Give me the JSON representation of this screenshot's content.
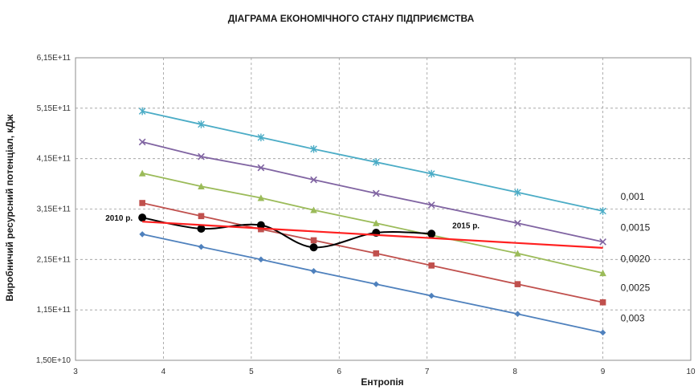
{
  "chart_data": {
    "type": "line",
    "title": "ДІАГРАМА ЕКОНОМІЧНОГО СТАНУ ПІДПРИЄМСТВА",
    "xlabel": "Ентропія",
    "ylabel": "Виробничий ресурсний потенціал, кДж",
    "xlim": [
      3,
      10
    ],
    "ylim": [
      15000000000,
      615000000000
    ],
    "x_ticks": [
      "3",
      "4",
      "5",
      "6",
      "7",
      "8",
      "9",
      "10"
    ],
    "y_ticks": [
      "1,50E+10",
      "1,15E+11",
      "2,15E+11",
      "3,15E+11",
      "4,15E+11",
      "5,15E+11",
      "6,15E+11"
    ],
    "grid": true,
    "series": [
      {
        "name": "0,001",
        "color": "#4bacc6",
        "marker": "star",
        "points": [
          [
            3.76,
            509000000000
          ],
          [
            4.43,
            483000000000
          ],
          [
            5.11,
            457000000000
          ],
          [
            5.71,
            434000000000
          ],
          [
            6.42,
            408000000000
          ],
          [
            7.05,
            385000000000
          ],
          [
            8.03,
            348000000000
          ],
          [
            9.0,
            311000000000
          ]
        ]
      },
      {
        "name": "0,0015",
        "color": "#8064a2",
        "marker": "x",
        "points": [
          [
            3.76,
            448000000000
          ],
          [
            4.43,
            419000000000
          ],
          [
            5.11,
            397000000000
          ],
          [
            5.71,
            373000000000
          ],
          [
            6.42,
            346000000000
          ],
          [
            7.05,
            323000000000
          ],
          [
            8.03,
            287000000000
          ],
          [
            9.0,
            250000000000
          ]
        ]
      },
      {
        "name": "0,0020",
        "color": "#9bbb59",
        "marker": "triangle",
        "points": [
          [
            3.76,
            386000000000
          ],
          [
            4.43,
            360000000000
          ],
          [
            5.11,
            337000000000
          ],
          [
            5.71,
            313000000000
          ],
          [
            6.42,
            287000000000
          ],
          [
            7.05,
            263000000000
          ],
          [
            8.03,
            227000000000
          ],
          [
            9.0,
            188000000000
          ]
        ]
      },
      {
        "name": "0,0025",
        "color": "#c0504d",
        "marker": "square",
        "points": [
          [
            3.76,
            327000000000
          ],
          [
            4.43,
            301000000000
          ],
          [
            5.11,
            275000000000
          ],
          [
            5.71,
            253000000000
          ],
          [
            6.42,
            227000000000
          ],
          [
            7.05,
            203000000000
          ],
          [
            8.03,
            166000000000
          ],
          [
            9.0,
            130000000000
          ]
        ]
      },
      {
        "name": "0,003",
        "color": "#4f81bd",
        "marker": "diamond",
        "points": [
          [
            3.76,
            265000000000
          ],
          [
            4.43,
            240000000000
          ],
          [
            5.11,
            215000000000
          ],
          [
            5.71,
            192000000000
          ],
          [
            6.42,
            166000000000
          ],
          [
            7.05,
            143000000000
          ],
          [
            8.03,
            107000000000
          ],
          [
            9.0,
            70000000000
          ]
        ]
      },
      {
        "name": "",
        "color": "#000000",
        "marker": "circle",
        "smooth": true,
        "points": [
          [
            3.76,
            298000000000
          ],
          [
            4.43,
            276000000000
          ],
          [
            5.11,
            283000000000
          ],
          [
            5.71,
            239000000000
          ],
          [
            6.42,
            268000000000
          ],
          [
            7.05,
            266000000000
          ]
        ]
      },
      {
        "name": "",
        "color": "#ff2020",
        "marker": "none",
        "points": [
          [
            3.76,
            290000000000
          ],
          [
            9.0,
            238000000000
          ]
        ]
      }
    ],
    "annotations": [
      {
        "text": "2010 р.",
        "x": 3.76,
        "y": 298000000000
      },
      {
        "text": "2015 р.",
        "x": 7.05,
        "y": 266000000000
      }
    ]
  }
}
